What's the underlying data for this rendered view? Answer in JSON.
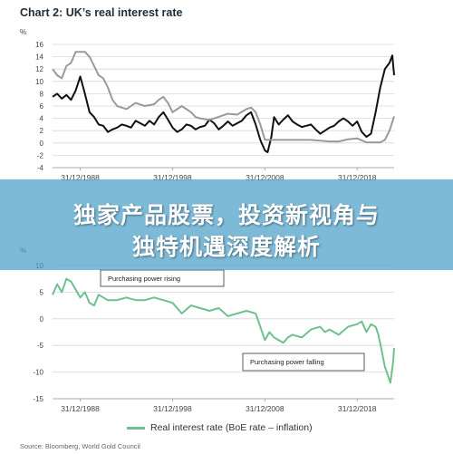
{
  "title": "Chart 2: UK’s real interest rate",
  "overlay": {
    "line1": "独家产品股票，投资新视角与",
    "line2": "独特机遇深度解析"
  },
  "units": {
    "top": "%",
    "bottom": "%"
  },
  "source": "Source: Bloomberg, World Gold Council",
  "chart_data": [
    {
      "type": "line",
      "ylim": [
        -4,
        16
      ],
      "yticks": [
        -4,
        -2,
        0,
        2,
        4,
        6,
        8,
        10,
        12,
        14,
        16
      ],
      "xlim": [
        1986,
        2023
      ],
      "xtick_labels": [
        "31/12/1988",
        "31/12/1998",
        "31/12/2008",
        "31/12/2018"
      ],
      "xtick_values": [
        1989,
        1999,
        2009,
        2019
      ],
      "grid": true,
      "series": [
        {
          "color": "#111111",
          "x": [
            1986.0,
            1986.5,
            1987.0,
            1987.5,
            1988.0,
            1988.5,
            1989.0,
            1989.5,
            1990.0,
            1990.5,
            1991.0,
            1991.5,
            1992.0,
            1992.5,
            1993.0,
            1993.5,
            1994.0,
            1994.5,
            1995.0,
            1995.5,
            1996.0,
            1996.5,
            1997.0,
            1997.5,
            1998.0,
            1998.5,
            1999.0,
            1999.5,
            2000.0,
            2000.5,
            2001.0,
            2001.5,
            2002.0,
            2002.5,
            2003.0,
            2003.5,
            2004.0,
            2004.5,
            2005.0,
            2005.5,
            2006.0,
            2006.5,
            2007.0,
            2007.5,
            2008.0,
            2008.5,
            2009.0,
            2009.3,
            2009.7,
            2010.0,
            2010.5,
            2011.0,
            2011.5,
            2012.0,
            2012.5,
            2013.0,
            2013.5,
            2014.0,
            2014.5,
            2015.0,
            2015.5,
            2016.0,
            2016.5,
            2017.0,
            2017.5,
            2018.0,
            2018.5,
            2019.0,
            2019.5,
            2020.0,
            2020.5,
            2021.0,
            2021.5,
            2022.0,
            2022.5,
            2022.8,
            2023.0
          ],
          "y": [
            7.5,
            8.0,
            7.2,
            7.8,
            7.0,
            8.5,
            10.8,
            8.0,
            5.0,
            4.2,
            3.0,
            2.8,
            1.8,
            2.2,
            2.5,
            3.0,
            2.8,
            2.5,
            3.6,
            3.2,
            2.8,
            3.6,
            3.0,
            4.2,
            5.0,
            3.8,
            2.5,
            1.8,
            2.2,
            3.0,
            2.8,
            2.2,
            2.6,
            2.8,
            3.8,
            3.2,
            2.2,
            2.8,
            3.5,
            2.8,
            3.2,
            3.6,
            4.5,
            5.0,
            3.0,
            0.5,
            -1.2,
            -1.5,
            1.0,
            4.2,
            3.0,
            3.8,
            4.5,
            3.5,
            3.0,
            2.6,
            2.8,
            3.0,
            2.2,
            1.5,
            2.0,
            2.5,
            2.8,
            3.5,
            4.0,
            3.5,
            2.8,
            3.5,
            1.8,
            1.0,
            1.5,
            5.0,
            9.0,
            12.0,
            13.0,
            14.2,
            11.0
          ]
        },
        {
          "color": "#9a9a9a",
          "x": [
            1986.0,
            1986.5,
            1987.0,
            1987.5,
            1988.0,
            1988.5,
            1989.0,
            1989.5,
            1990.0,
            1990.5,
            1991.0,
            1991.5,
            1992.0,
            1992.5,
            1993.0,
            1994.0,
            1995.0,
            1996.0,
            1997.0,
            1997.5,
            1998.0,
            1998.5,
            1999.0,
            2000.0,
            2001.0,
            2001.5,
            2002.0,
            2003.0,
            2004.0,
            2005.0,
            2006.0,
            2007.0,
            2007.5,
            2008.0,
            2008.5,
            2009.0,
            2010.0,
            2012.0,
            2014.0,
            2016.0,
            2017.0,
            2018.0,
            2019.0,
            2020.0,
            2020.5,
            2021.0,
            2021.5,
            2022.0,
            2022.5,
            2023.0
          ],
          "y": [
            12.0,
            11.0,
            10.5,
            12.5,
            13.0,
            14.8,
            14.8,
            14.8,
            14.0,
            12.5,
            11.0,
            10.5,
            9.0,
            7.0,
            6.0,
            5.5,
            6.5,
            6.0,
            6.3,
            7.0,
            7.5,
            6.5,
            5.0,
            6.0,
            5.0,
            4.2,
            4.0,
            3.75,
            4.25,
            4.75,
            4.6,
            5.5,
            5.75,
            5.0,
            3.0,
            0.5,
            0.5,
            0.5,
            0.5,
            0.25,
            0.25,
            0.6,
            0.75,
            0.1,
            0.1,
            0.1,
            0.1,
            0.5,
            2.0,
            4.3
          ]
        }
      ]
    },
    {
      "type": "line",
      "ylim": [
        -15,
        10
      ],
      "yticks": [
        -15,
        -10,
        -5,
        0,
        5,
        10
      ],
      "xlim": [
        1986,
        2023
      ],
      "xtick_labels": [
        "31/12/1988",
        "31/12/1998",
        "31/12/2008",
        "31/12/2018"
      ],
      "xtick_values": [
        1989,
        1999,
        2009,
        2019
      ],
      "grid": true,
      "annotations": [
        "Purchasing power rising",
        "Purchasing power falling"
      ],
      "series": [
        {
          "name": "Real interest rate (BoE rate – inflation)",
          "color": "#6fc08f",
          "x": [
            1986.0,
            1986.5,
            1987.0,
            1987.5,
            1988.0,
            1988.5,
            1989.0,
            1989.5,
            1990.0,
            1990.5,
            1991.0,
            1991.5,
            1992.0,
            1993.0,
            1994.0,
            1995.0,
            1996.0,
            1997.0,
            1998.0,
            1999.0,
            2000.0,
            2001.0,
            2002.0,
            2003.0,
            2004.0,
            2005.0,
            2006.0,
            2007.0,
            2008.0,
            2008.5,
            2009.0,
            2009.5,
            2010.0,
            2011.0,
            2011.5,
            2012.0,
            2013.0,
            2014.0,
            2015.0,
            2015.5,
            2016.0,
            2017.0,
            2018.0,
            2019.0,
            2019.5,
            2020.0,
            2020.5,
            2021.0,
            2021.3,
            2021.6,
            2022.0,
            2022.3,
            2022.6,
            2022.9,
            2023.0
          ],
          "y": [
            4.5,
            6.5,
            5.0,
            7.5,
            7.0,
            5.5,
            4.0,
            5.0,
            3.0,
            2.5,
            4.5,
            4.0,
            3.5,
            3.5,
            4.0,
            3.5,
            3.5,
            4.0,
            3.5,
            3.0,
            1.0,
            2.5,
            2.0,
            1.5,
            2.0,
            0.5,
            1.0,
            1.5,
            1.0,
            -1.5,
            -4.0,
            -2.5,
            -3.5,
            -4.5,
            -3.5,
            -3.0,
            -3.5,
            -2.0,
            -1.5,
            -2.5,
            -2.0,
            -3.0,
            -1.5,
            -1.0,
            -0.5,
            -2.5,
            -1.0,
            -1.5,
            -3.0,
            -5.5,
            -9.0,
            -10.5,
            -12.0,
            -8.0,
            -5.5
          ]
        }
      ]
    }
  ]
}
